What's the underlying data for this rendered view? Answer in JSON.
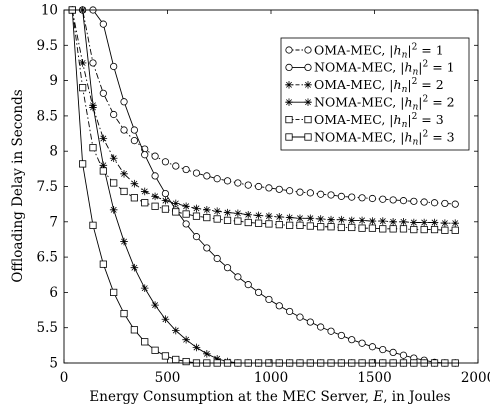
{
  "chart_data": {
    "type": "line",
    "xlabel_prefix": "Energy Consumption at the MEC Server, ",
    "xlabel_var": "E",
    "xlabel_suffix": ", in Joules",
    "ylabel": "Offloading Delay in Seconds",
    "xlim": [
      0,
      2000
    ],
    "ylim": [
      5,
      10
    ],
    "xticks": [
      0,
      500,
      1000,
      1500,
      2000
    ],
    "xtick_labels": [
      "0",
      "500",
      "1000",
      "1500",
      "2000"
    ],
    "yticks": [
      5,
      5.5,
      6,
      6.5,
      7,
      7.5,
      8,
      8.5,
      9,
      9.5,
      10
    ],
    "ytick_labels": [
      "5",
      "5.5",
      "6",
      "6.5",
      "7",
      "7.5",
      "8",
      "8.5",
      "9",
      "9.5",
      "10"
    ],
    "grid": false,
    "legend_position": "top-right",
    "legend": [
      {
        "method": "OMA-MEC",
        "h2": "1",
        "line": "dashdot",
        "marker": "circle"
      },
      {
        "method": "NOMA-MEC",
        "h2": "1",
        "line": "solid",
        "marker": "circle"
      },
      {
        "method": "OMA-MEC",
        "h2": "2",
        "line": "dashdot",
        "marker": "star"
      },
      {
        "method": "NOMA-MEC",
        "h2": "2",
        "line": "solid",
        "marker": "star"
      },
      {
        "method": "OMA-MEC",
        "h2": "3",
        "line": "dashdot",
        "marker": "square"
      },
      {
        "method": "NOMA-MEC",
        "h2": "3",
        "line": "solid",
        "marker": "square"
      }
    ],
    "x": [
      40,
      90,
      140,
      190,
      240,
      290,
      340,
      390,
      440,
      490,
      540,
      590,
      640,
      690,
      740,
      790,
      840,
      890,
      940,
      990,
      1040,
      1090,
      1140,
      1190,
      1240,
      1290,
      1340,
      1390,
      1440,
      1490,
      1540,
      1590,
      1640,
      1690,
      1740,
      1790,
      1840,
      1890
    ],
    "series": [
      {
        "label_index": 0,
        "values": [
          10.0,
          10.0,
          9.25,
          8.82,
          8.52,
          8.3,
          8.15,
          8.03,
          7.93,
          7.85,
          7.79,
          7.74,
          7.69,
          7.65,
          7.61,
          7.58,
          7.55,
          7.52,
          7.5,
          7.48,
          7.46,
          7.44,
          7.42,
          7.41,
          7.39,
          7.38,
          7.36,
          7.35,
          7.34,
          7.33,
          7.32,
          7.31,
          7.3,
          7.29,
          7.28,
          7.27,
          7.26,
          7.25
        ]
      },
      {
        "label_index": 1,
        "values": [
          10.0,
          10.0,
          10.0,
          9.8,
          9.2,
          8.7,
          8.3,
          7.95,
          7.65,
          7.4,
          7.17,
          6.97,
          6.79,
          6.63,
          6.48,
          6.35,
          6.22,
          6.11,
          6.0,
          5.9,
          5.81,
          5.73,
          5.65,
          5.58,
          5.51,
          5.45,
          5.39,
          5.33,
          5.28,
          5.23,
          5.19,
          5.15,
          5.11,
          5.07,
          5.04,
          5.01,
          5.0,
          5.0
        ]
      },
      {
        "label_index": 2,
        "values": [
          10.0,
          9.25,
          8.62,
          8.18,
          7.9,
          7.68,
          7.54,
          7.43,
          7.36,
          7.3,
          7.26,
          7.22,
          7.19,
          7.17,
          7.15,
          7.13,
          7.12,
          7.1,
          7.09,
          7.08,
          7.07,
          7.06,
          7.05,
          7.05,
          7.04,
          7.03,
          7.03,
          7.02,
          7.02,
          7.01,
          7.01,
          7.0,
          7.0,
          6.99,
          6.99,
          6.99,
          6.98,
          6.98
        ]
      },
      {
        "label_index": 3,
        "values": [
          10.0,
          10.0,
          8.65,
          7.8,
          7.17,
          6.72,
          6.35,
          6.06,
          5.82,
          5.62,
          5.46,
          5.33,
          5.22,
          5.13,
          5.06,
          5.02,
          5.0,
          5.0,
          5.0,
          5.0,
          5.0,
          5.0,
          5.0,
          5.0,
          5.0,
          5.0,
          5.0,
          5.0,
          5.0,
          5.0,
          5.0,
          5.0,
          5.0,
          5.0,
          5.0,
          5.0,
          5.0,
          5.0
        ]
      },
      {
        "label_index": 4,
        "values": [
          10.0,
          8.9,
          8.05,
          7.72,
          7.55,
          7.43,
          7.34,
          7.27,
          7.22,
          7.18,
          7.14,
          7.11,
          7.08,
          7.06,
          7.04,
          7.02,
          7.01,
          6.99,
          6.98,
          6.97,
          6.96,
          6.95,
          6.95,
          6.94,
          6.93,
          6.93,
          6.92,
          6.92,
          6.91,
          6.91,
          6.9,
          6.9,
          6.9,
          6.89,
          6.89,
          6.89,
          6.88,
          6.88
        ]
      },
      {
        "label_index": 5,
        "values": [
          10.0,
          7.82,
          6.95,
          6.4,
          6.0,
          5.7,
          5.47,
          5.3,
          5.18,
          5.1,
          5.05,
          5.02,
          5.0,
          5.0,
          5.0,
          5.0,
          5.0,
          5.0,
          5.0,
          5.0,
          5.0,
          5.0,
          5.0,
          5.0,
          5.0,
          5.0,
          5.0,
          5.0,
          5.0,
          5.0,
          5.0,
          5.0,
          5.0,
          5.0,
          5.0,
          5.0,
          5.0,
          5.0
        ]
      }
    ]
  }
}
